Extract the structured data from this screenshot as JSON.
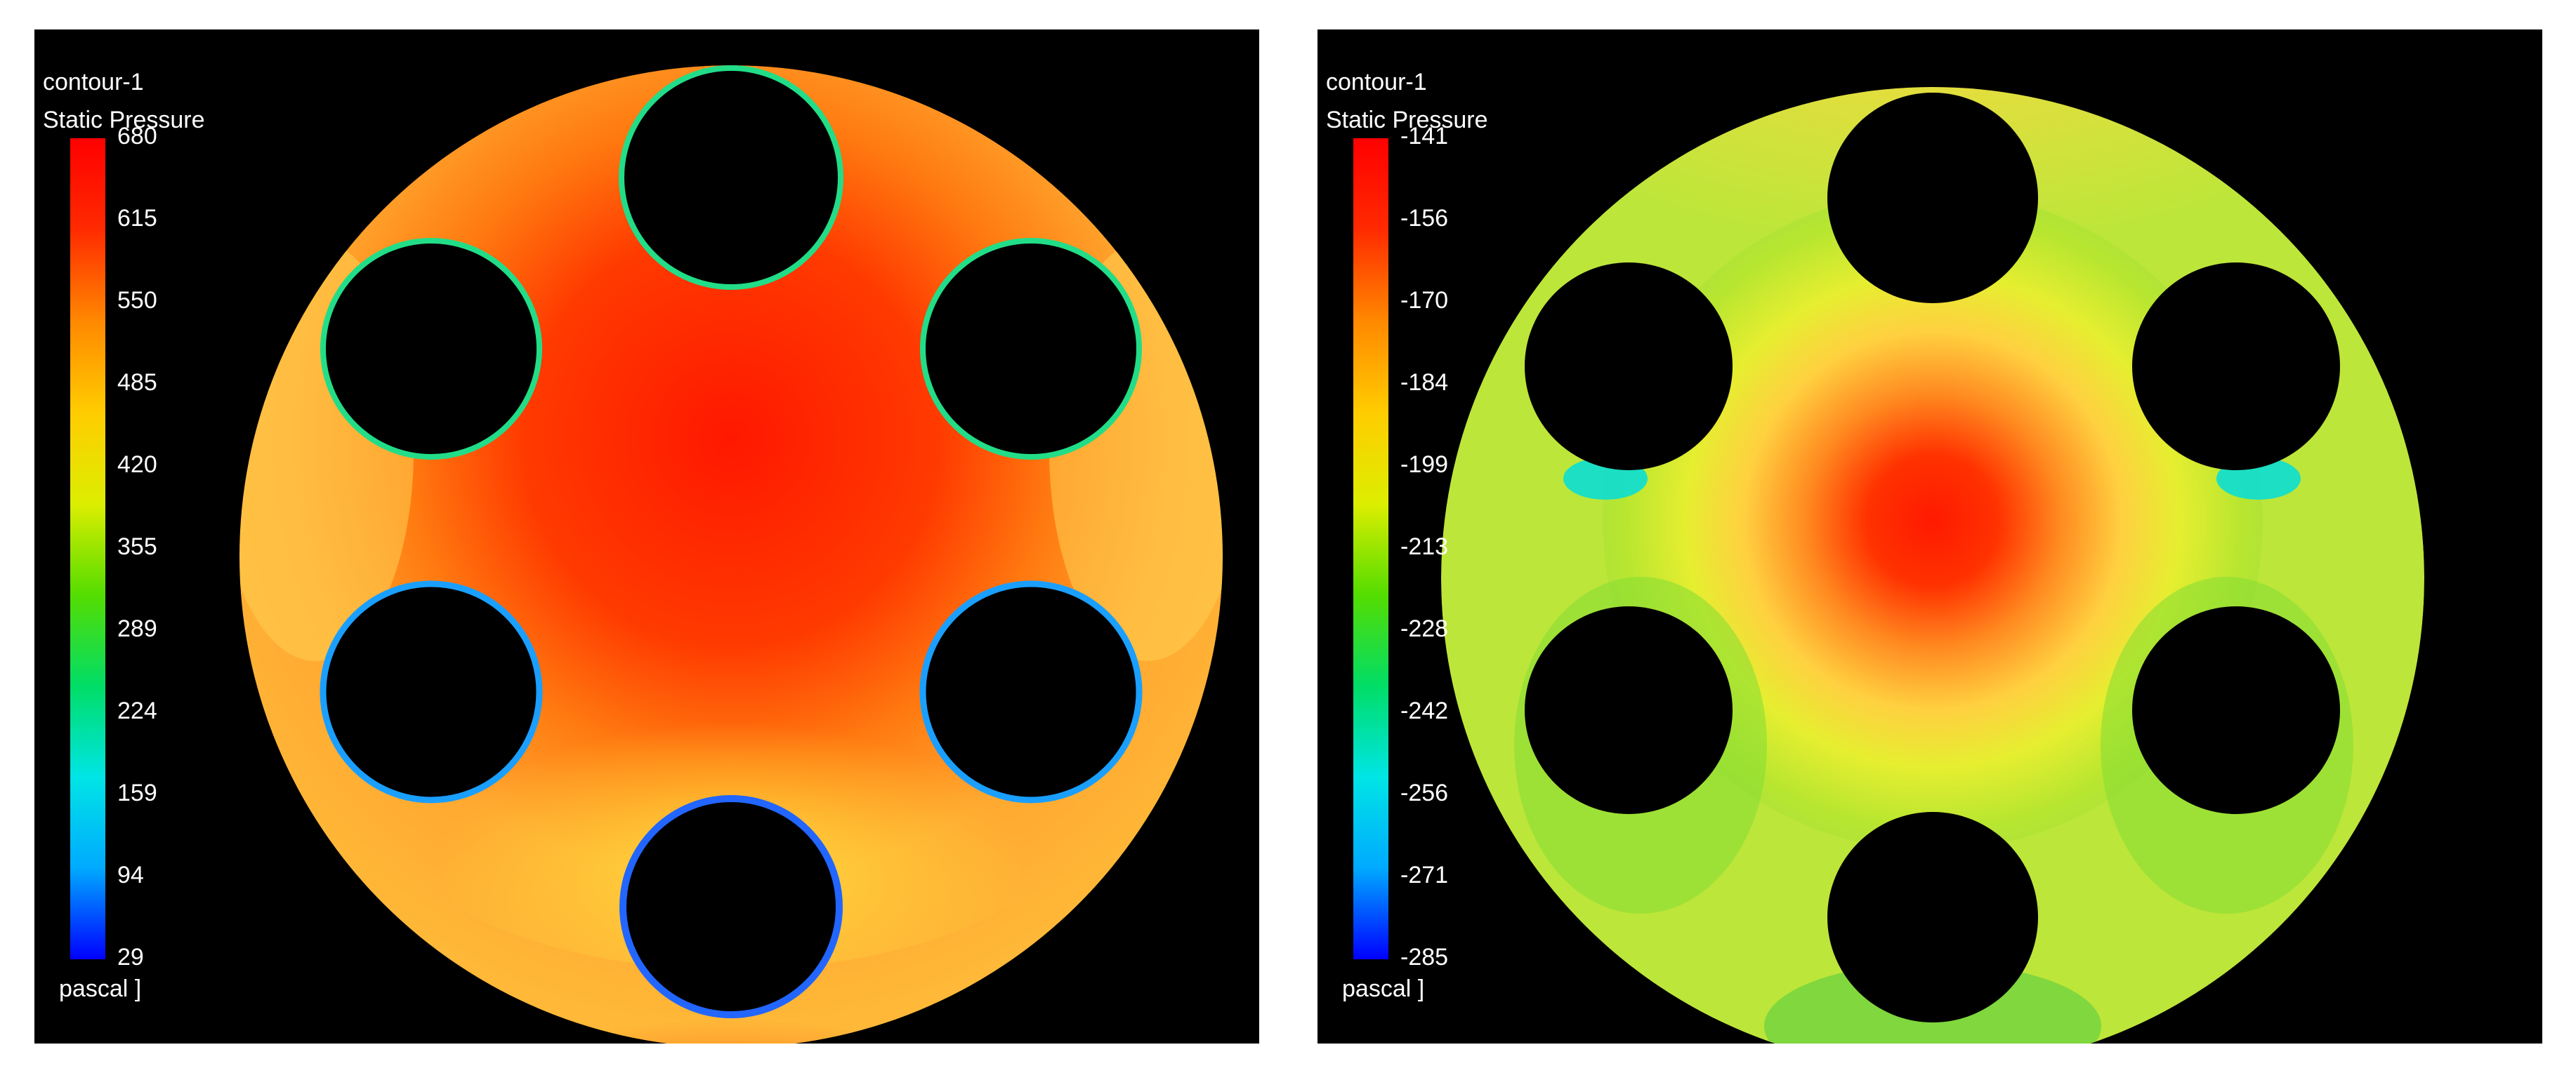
{
  "colorbar_gradient": [
    "#0000ff",
    "#00aaff",
    "#00e5e5",
    "#00dd66",
    "#55dd00",
    "#ddee00",
    "#ffcc00",
    "#ff8800",
    "#ff2a00",
    "#ff0000"
  ],
  "left": {
    "title": "contour-1",
    "quantity": "Static Pressure",
    "units": "pascal ]",
    "ticks": [
      "680",
      "615",
      "550",
      "485",
      "420",
      "355",
      "289",
      "224",
      "159",
      "94",
      "29"
    ]
  },
  "right": {
    "title": "contour-1",
    "quantity": "Static Pressure",
    "units": "pascal ]",
    "ticks": [
      "-141",
      "-156",
      "-170",
      "-184",
      "-199",
      "-213",
      "-228",
      "-242",
      "-256",
      "-271",
      "-285"
    ]
  }
}
